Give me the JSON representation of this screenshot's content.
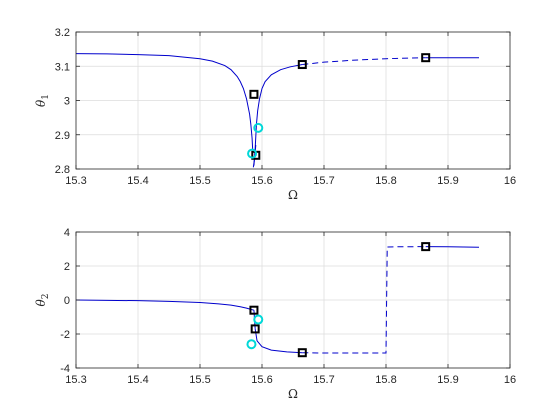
{
  "chart_data": [
    {
      "type": "line",
      "xlabel": "Ω",
      "ylabel_main": "θ",
      "ylabel_sub": "1",
      "xlim": [
        15.3,
        16
      ],
      "ylim": [
        2.8,
        3.2
      ],
      "xticks": [
        15.3,
        15.4,
        15.5,
        15.6,
        15.7,
        15.8,
        15.9,
        16
      ],
      "xtick_labels": [
        "15.3",
        "15.4",
        "15.5",
        "15.6",
        "15.7",
        "15.8",
        "15.9",
        "16"
      ],
      "yticks": [
        2.8,
        2.9,
        3.0,
        3.1,
        3.2
      ],
      "ytick_labels": [
        "2.8",
        "2.9",
        "3",
        "3.1",
        "3.2"
      ],
      "grid": true,
      "series": [
        {
          "style": "solid",
          "color": "#0000cc",
          "x": [
            15.3,
            15.35,
            15.4,
            15.45,
            15.5,
            15.52,
            15.54,
            15.55,
            15.56,
            15.565,
            15.57,
            15.575,
            15.58,
            15.582,
            15.584,
            15.585
          ],
          "y": [
            3.137,
            3.136,
            3.134,
            3.131,
            3.122,
            3.115,
            3.102,
            3.09,
            3.07,
            3.055,
            3.035,
            3.005,
            2.96,
            2.93,
            2.89,
            2.855
          ]
        },
        {
          "style": "solid",
          "color": "#0000cc",
          "x": [
            15.586,
            15.588,
            15.59
          ],
          "y": [
            2.805,
            2.83,
            2.87
          ]
        },
        {
          "style": "solid",
          "color": "#0000cc",
          "x": [
            15.587,
            15.589,
            15.591,
            15.593,
            15.596,
            15.6,
            15.605,
            15.615,
            15.63,
            15.645,
            15.665
          ],
          "y": [
            2.81,
            2.86,
            2.93,
            2.97,
            3.005,
            3.035,
            3.055,
            3.075,
            3.09,
            3.098,
            3.105
          ]
        },
        {
          "style": "dashed",
          "color": "#0000cc",
          "x": [
            15.665,
            15.7,
            15.75,
            15.8,
            15.864
          ],
          "y": [
            3.105,
            3.112,
            3.118,
            3.122,
            3.125
          ]
        },
        {
          "style": "solid",
          "color": "#0000cc",
          "x": [
            15.864,
            15.9,
            15.95
          ],
          "y": [
            3.125,
            3.125,
            3.125
          ]
        }
      ],
      "markers": [
        {
          "shape": "square",
          "color": "#000000",
          "x": 15.587,
          "y": 3.018
        },
        {
          "shape": "square",
          "color": "#000000",
          "x": 15.59,
          "y": 2.84
        },
        {
          "shape": "square",
          "color": "#000000",
          "x": 15.665,
          "y": 3.105
        },
        {
          "shape": "square",
          "color": "#000000",
          "x": 15.864,
          "y": 3.125
        },
        {
          "shape": "circle",
          "color": "#00d8d8",
          "x": 15.584,
          "y": 2.845
        },
        {
          "shape": "circle",
          "color": "#00d8d8",
          "x": 15.594,
          "y": 2.92
        }
      ]
    },
    {
      "type": "line",
      "xlabel": "Ω",
      "ylabel_main": "θ",
      "ylabel_sub": "2",
      "xlim": [
        15.3,
        16
      ],
      "ylim": [
        -4,
        4
      ],
      "xticks": [
        15.3,
        15.4,
        15.5,
        15.6,
        15.7,
        15.8,
        15.9,
        16
      ],
      "xtick_labels": [
        "15.3",
        "15.4",
        "15.5",
        "15.6",
        "15.7",
        "15.8",
        "15.9",
        "16"
      ],
      "yticks": [
        -4,
        -2,
        0,
        2,
        4
      ],
      "ytick_labels": [
        "-4",
        "-2",
        "0",
        "2",
        "4"
      ],
      "grid": true,
      "series": [
        {
          "style": "solid",
          "color": "#0000cc",
          "x": [
            15.3,
            15.35,
            15.4,
            15.45,
            15.5,
            15.53,
            15.55,
            15.565,
            15.575,
            15.582,
            15.587
          ],
          "y": [
            0.0,
            -0.02,
            -0.04,
            -0.08,
            -0.15,
            -0.23,
            -0.3,
            -0.4,
            -0.48,
            -0.55,
            -0.6
          ]
        },
        {
          "style": "solid",
          "color": "#0000cc",
          "x": [
            15.587,
            15.588,
            15.589
          ],
          "y": [
            -0.6,
            -1.2,
            -1.7
          ]
        },
        {
          "style": "solid",
          "color": "#0000cc",
          "x": [
            15.589,
            15.592,
            15.6,
            15.615,
            15.64,
            15.665
          ],
          "y": [
            -1.7,
            -2.4,
            -2.75,
            -2.95,
            -3.05,
            -3.1
          ]
        },
        {
          "style": "dashed",
          "color": "#0000cc",
          "x": [
            15.665,
            15.7,
            15.75,
            15.8,
            15.802,
            15.82,
            15.864
          ],
          "y": [
            -3.1,
            -3.12,
            -3.12,
            -3.12,
            3.12,
            3.13,
            3.14
          ]
        },
        {
          "style": "solid",
          "color": "#0000cc",
          "x": [
            15.864,
            15.9,
            15.95
          ],
          "y": [
            3.14,
            3.13,
            3.1
          ]
        }
      ],
      "markers": [
        {
          "shape": "square",
          "color": "#000000",
          "x": 15.587,
          "y": -0.6
        },
        {
          "shape": "square",
          "color": "#000000",
          "x": 15.589,
          "y": -1.7
        },
        {
          "shape": "square",
          "color": "#000000",
          "x": 15.665,
          "y": -3.1
        },
        {
          "shape": "square",
          "color": "#000000",
          "x": 15.864,
          "y": 3.14
        },
        {
          "shape": "circle",
          "color": "#00d8d8",
          "x": 15.594,
          "y": -1.15
        },
        {
          "shape": "circle",
          "color": "#00d8d8",
          "x": 15.583,
          "y": -2.6
        }
      ]
    }
  ]
}
